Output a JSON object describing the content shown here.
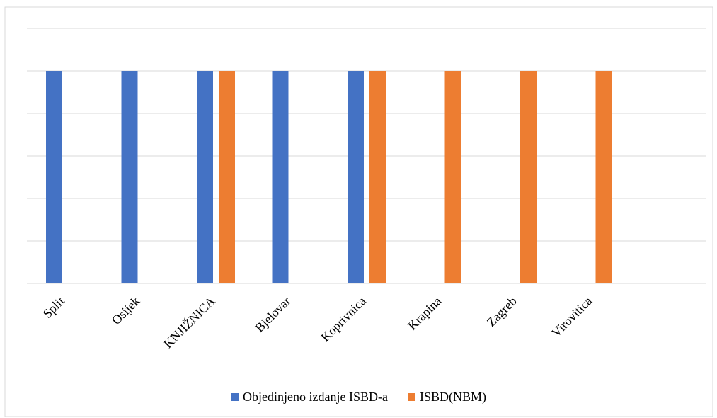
{
  "chart_data": {
    "type": "bar",
    "title": "",
    "xlabel": "",
    "ylabel": "",
    "categories": [
      "Split",
      "Osijek",
      "KNJIŽNICA",
      "Bjelovar",
      "Koprivnica",
      "Krapina",
      "Zagreb",
      "Virovitica"
    ],
    "series": [
      {
        "name": "Objedinjeno izdanje ISBD-a",
        "color": "#4472C4",
        "values": [
          1,
          1,
          1,
          1,
          1,
          0,
          0,
          0
        ]
      },
      {
        "name": "ISBD(NBM)",
        "color": "#ED7D31",
        "values": [
          0,
          0,
          1,
          0,
          1,
          1,
          1,
          1
        ]
      }
    ],
    "ylim": [
      0,
      1.2
    ],
    "grid": true,
    "legend_position": "bottom",
    "y_tick_labels_shown": false
  }
}
